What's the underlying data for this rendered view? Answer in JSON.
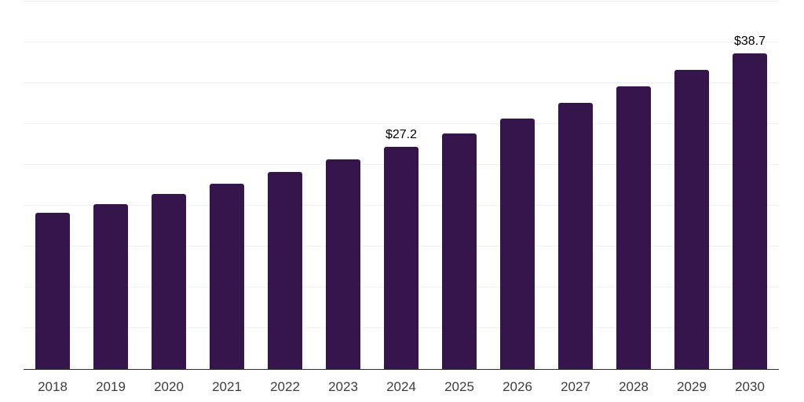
{
  "chart_data": {
    "type": "bar",
    "title": "",
    "xlabel": "",
    "ylabel": "",
    "categories": [
      "2018",
      "2019",
      "2020",
      "2021",
      "2022",
      "2023",
      "2024",
      "2025",
      "2026",
      "2027",
      "2028",
      "2029",
      "2030"
    ],
    "values": [
      19.1,
      20.2,
      21.4,
      22.7,
      24.1,
      25.7,
      27.2,
      28.8,
      30.7,
      32.6,
      34.6,
      36.6,
      38.7
    ],
    "value_labels": [
      "",
      "",
      "",
      "",
      "",
      "",
      "$27.2",
      "",
      "",
      "",
      "",
      "",
      "$38.7"
    ],
    "ylim": [
      0,
      45
    ],
    "gridline_step": 5,
    "grid": true,
    "legend": false,
    "y_tick_labels_shown": false,
    "bar_color": "#36154c",
    "gridline_color": "#f0f0f0",
    "axis_line_color": "#2e2e2e",
    "tick_label_color": "#3d3d3d",
    "value_label_color": "#000000"
  }
}
